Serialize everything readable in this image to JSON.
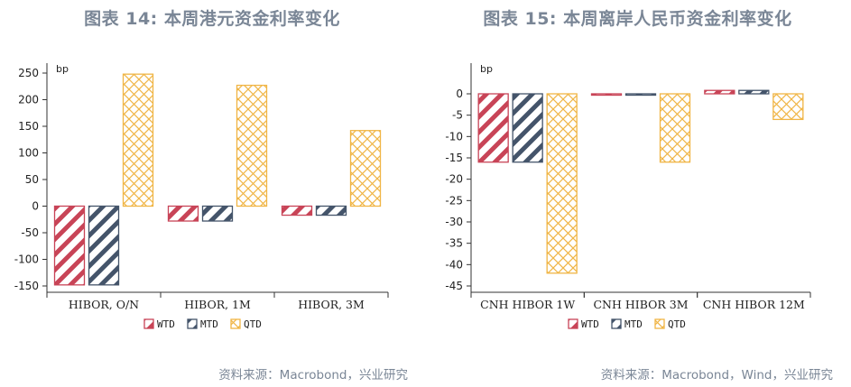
{
  "colors": {
    "WTD": "#c84457",
    "MTD": "#44546a",
    "QTD": "#f0b545",
    "title": "#7a8696"
  },
  "chart_data": [
    {
      "type": "bar",
      "title": "图表 14: 本周港元资金利率变化",
      "unit": "bp",
      "categories": [
        "HIBOR, O/N",
        "HIBOR, 1M",
        "HIBOR, 3M"
      ],
      "series": [
        {
          "name": "WTD",
          "values": [
            -148,
            -28,
            -17
          ]
        },
        {
          "name": "MTD",
          "values": [
            -148,
            -28,
            -17
          ]
        },
        {
          "name": "QTD",
          "values": [
            248,
            227,
            142
          ]
        }
      ],
      "ylim": [
        -150,
        250
      ],
      "yticks": [
        250,
        200,
        150,
        100,
        50,
        0,
        -50,
        -100,
        -150
      ],
      "legend": "bottom",
      "source": "资料来源：Macrobond，兴业研究"
    },
    {
      "type": "bar",
      "title": "图表 15: 本周离岸人民币资金利率变化",
      "unit": "bp",
      "categories": [
        "CNH HIBOR 1W",
        "CNH HIBOR 3M",
        "CNH HIBOR 12M"
      ],
      "series": [
        {
          "name": "WTD",
          "values": [
            -16,
            -0.3,
            0.8
          ]
        },
        {
          "name": "MTD",
          "values": [
            -16,
            -0.3,
            0.8
          ]
        },
        {
          "name": "QTD",
          "values": [
            -42,
            -16,
            -6
          ]
        }
      ],
      "ylim": [
        -45,
        0
      ],
      "yticks": [
        0,
        -5,
        -10,
        -15,
        -20,
        -25,
        -30,
        -35,
        -40,
        -45
      ],
      "legend": "bottom",
      "source": "资料来源：Macrobond，Wind，兴业研究"
    }
  ]
}
